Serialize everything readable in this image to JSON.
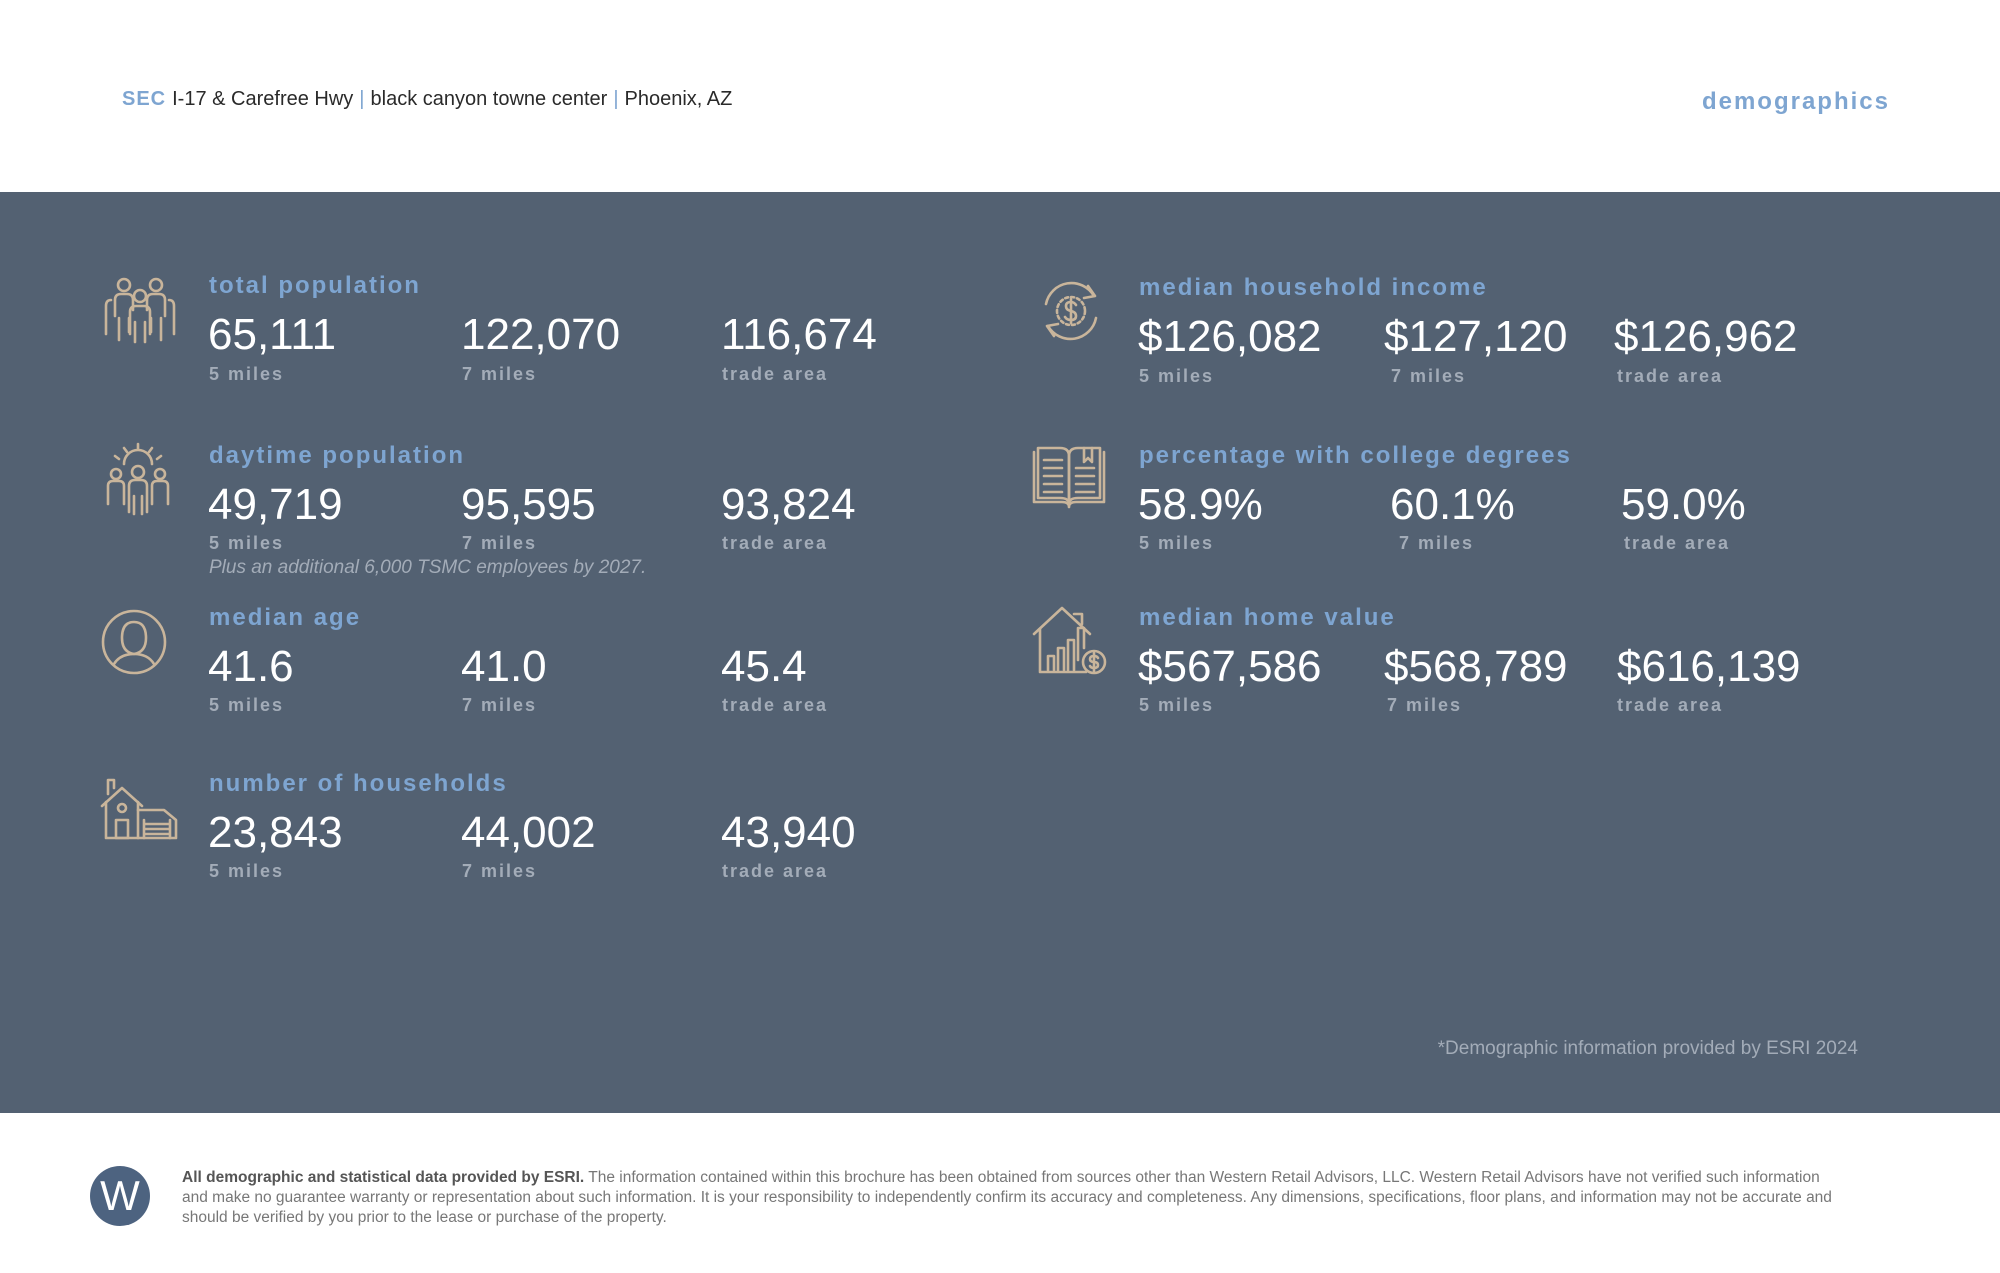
{
  "header": {
    "sec": "SEC",
    "location": "I-17 & Carefree Hwy",
    "center": "black canyon towne center",
    "city": "Phoenix, AZ",
    "separator": "|",
    "title": "demographics"
  },
  "stats": {
    "total_population": {
      "label": "total population",
      "icon": "group-people-icon",
      "values": [
        "65,111",
        "122,070",
        "116,674"
      ],
      "subs": [
        "5 miles",
        "7 miles",
        "trade area"
      ]
    },
    "daytime_population": {
      "label": "daytime population",
      "icon": "people-sun-icon",
      "values": [
        "49,719",
        "95,595",
        "93,824"
      ],
      "subs": [
        "5 miles",
        "7 miles",
        "trade area"
      ],
      "note": "Plus an additional 6,000 TSMC employees by 2027."
    },
    "median_age": {
      "label": "median age",
      "icon": "person-portrait-icon",
      "values": [
        "41.6",
        "41.0",
        "45.4"
      ],
      "subs": [
        "5 miles",
        "7 miles",
        "trade area"
      ]
    },
    "households": {
      "label": "number of households",
      "icon": "house-garage-icon",
      "values": [
        "23,843",
        "44,002",
        "43,940"
      ],
      "subs": [
        "5 miles",
        "7 miles",
        "trade area"
      ]
    },
    "household_income": {
      "label": "median household income",
      "icon": "dollar-cycle-icon",
      "values": [
        "$126,082",
        "$127,120",
        "$126,962"
      ],
      "subs": [
        "5 miles",
        "7 miles",
        "trade area"
      ]
    },
    "college_degrees": {
      "label": "percentage with college degrees",
      "icon": "open-book-icon",
      "values": [
        "58.9%",
        "60.1%",
        "59.0%"
      ],
      "subs": [
        "5 miles",
        "7 miles",
        "trade area"
      ]
    },
    "home_value": {
      "label": "median home value",
      "icon": "house-chart-icon",
      "values": [
        "$567,586",
        "$568,789",
        "$616,139"
      ],
      "subs": [
        "5 miles",
        "7 miles",
        "trade area"
      ]
    }
  },
  "source_note": "*Demographic information provided by ESRI 2024",
  "footer": {
    "logo_letter": "W",
    "disclaimer_bold": "All demographic and statistical data provided by ESRI.",
    "disclaimer": "The information contained within this brochure has been obtained from sources other than Western Retail Advisors, LLC. Western Retail Advisors have not verified such information and make no guarantee warranty or representation about such information. It is your responsibility to independently confirm its accuracy and completeness. Any dimensions, specifications, floor plans, and information may not be accurate and should be verified by you prior to the lease or purchase of the property."
  },
  "colors": {
    "accent": "#7ea5d1",
    "panel": "#536172",
    "icon": "#c9b59b",
    "value": "#ffffff",
    "muted": "#a3acb8"
  }
}
